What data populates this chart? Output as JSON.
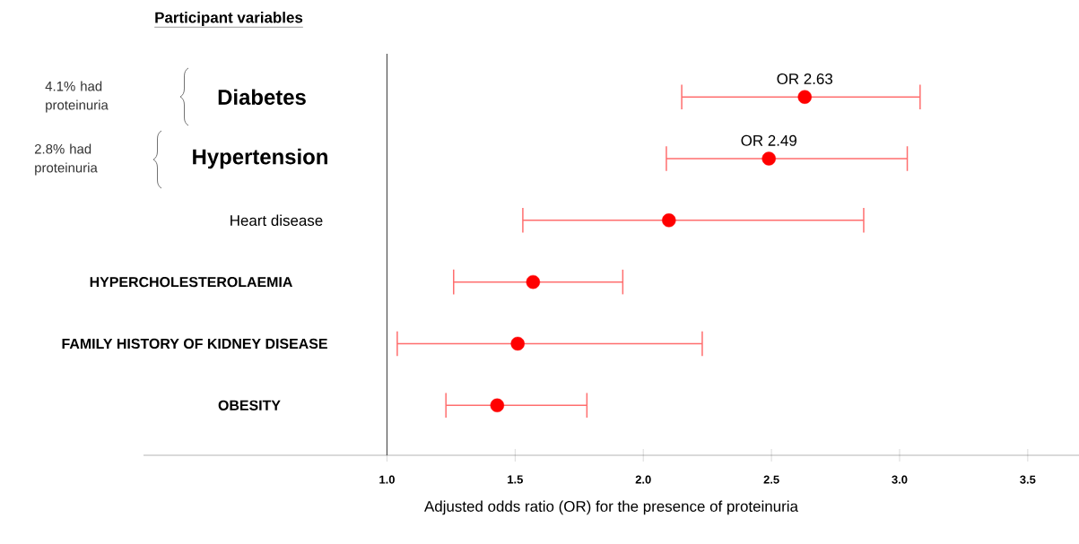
{
  "chart_data": {
    "type": "scatter",
    "orientation": "horizontal",
    "title": "Participant variables",
    "xlabel": "Adjusted odds ratio (OR) for the presence of proteinuria",
    "categories": [
      "Diabetes",
      "Hypertension",
      "Heart disease",
      "HYPERCHOLESTEROLAEMIA",
      "FAMILY HISTORY OF KIDNEY DISEASE",
      "OBESITY"
    ],
    "values": [
      2.63,
      2.49,
      2.1,
      1.57,
      1.51,
      1.43
    ],
    "errors": [
      [
        2.15,
        3.08
      ],
      [
        2.09,
        3.03
      ],
      [
        1.53,
        2.86
      ],
      [
        1.26,
        1.92
      ],
      [
        1.04,
        2.23
      ],
      [
        1.23,
        1.78
      ]
    ],
    "value_labels": [
      "OR 2.63",
      "OR 2.49",
      null,
      null,
      null,
      null
    ],
    "color": "#ff0000",
    "marker": "circle",
    "xlim": [
      0.05,
      3.7
    ],
    "xticks": [
      {
        "value": 1,
        "label": "1.0"
      },
      {
        "value": 1.5,
        "label": "1.5"
      },
      {
        "value": 2,
        "label": "2.0"
      },
      {
        "value": 2.5,
        "label": "2.5"
      },
      {
        "value": 3,
        "label": "3.0"
      },
      {
        "value": 3.5,
        "label": "3.5"
      }
    ],
    "ref_lines": [
      {
        "axis": "x",
        "value": 1,
        "color": "#505050"
      }
    ],
    "annotations": [
      "4.1% had proteinuria",
      "2.8% had proteinuria"
    ]
  }
}
